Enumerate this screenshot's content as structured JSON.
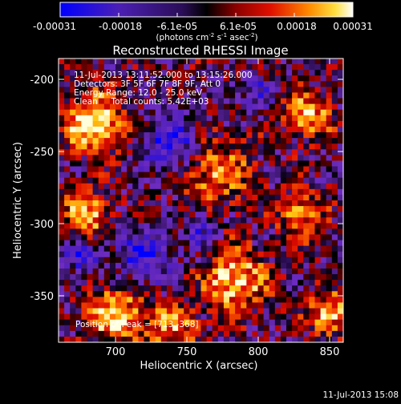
{
  "colorbar": {
    "ticks": [
      "-0.00031",
      "-0.00018",
      "-6.1e-05",
      "6.1e-05",
      "0.00018",
      "0.00031"
    ],
    "units_prefix": "(photons cm",
    "units_sup1": "-2",
    "units_mid": " s",
    "units_sup2": "-1",
    "units_mid2": " asec",
    "units_sup3": "-2",
    "units_suffix": ")",
    "colormap": [
      "#0000ff",
      "#4b1fb5",
      "#6f2cc0",
      "#000000",
      "#7a0000",
      "#e00000",
      "#ff7000",
      "#ffd000",
      "#ffffff"
    ]
  },
  "plot": {
    "title": "Reconstructed RHESSI Image",
    "xlabel": "Heliocentric X (arcsec)",
    "ylabel": "Heliocentric Y (arcsec)",
    "xticks": [
      "700",
      "750",
      "800",
      "850"
    ],
    "yticks": [
      "-200",
      "-250",
      "-300",
      "-350"
    ],
    "xlim": [
      662,
      855
    ],
    "ylim": [
      -387,
      -187
    ]
  },
  "annotations": {
    "time_range": "11-Jul-2013 13:11:52.000 to 13:15:26.000",
    "detectors": "Detectors: 3F 5F 6F 7F 8F 9F, Att 0",
    "energy_range": "Energy Range: 12.0 - 25.0 keV",
    "clean_total": "Clean     Total counts: 5.42E+03",
    "peak_position": "Position of Peak = [713,-368]"
  },
  "footer": {
    "timestamp": "11-Jul-2013 15:08"
  }
}
